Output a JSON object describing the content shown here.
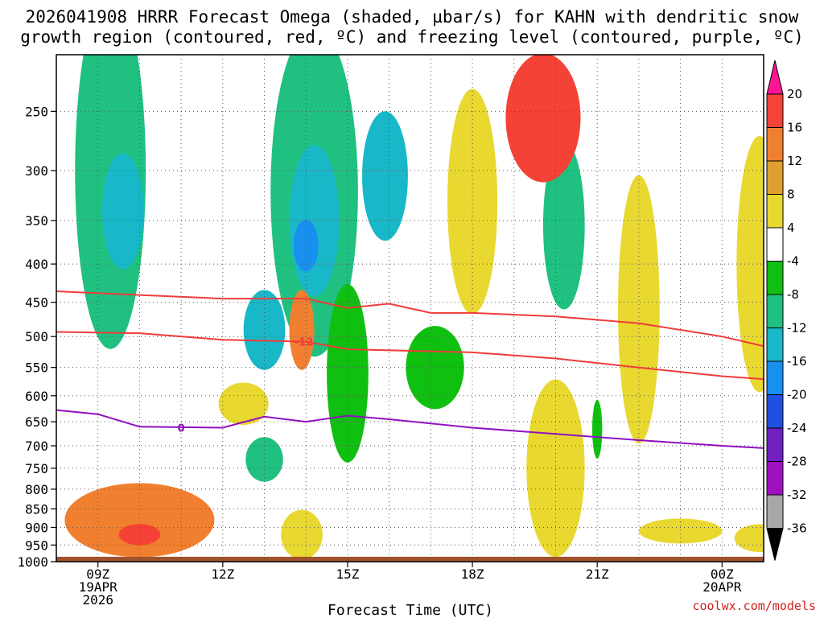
{
  "chart_data": {
    "type": "heatmap",
    "title_line1": "2026041908 HRRR Forecast Omega (shaded, µbar/s) for KAHN with dendritic snow",
    "title_line2": "growth region (contoured, red, ºC) and freezing level (contoured, purple, ºC)",
    "xlabel": "Forecast Time (UTC)",
    "credit": "coolwx.com/models",
    "x_range": [
      8,
      25
    ],
    "y_range": [
      1000,
      210
    ],
    "y_ticks": [
      250,
      300,
      350,
      400,
      450,
      500,
      550,
      600,
      650,
      700,
      750,
      800,
      850,
      900,
      950,
      1000
    ],
    "x_ticks": [
      {
        "t": 9,
        "lines": [
          "09Z",
          "19APR",
          "2026"
        ]
      },
      {
        "t": 12,
        "lines": [
          "12Z"
        ]
      },
      {
        "t": 15,
        "lines": [
          "15Z"
        ]
      },
      {
        "t": 18,
        "lines": [
          "18Z"
        ]
      },
      {
        "t": 21,
        "lines": [
          "21Z"
        ]
      },
      {
        "t": 24,
        "lines": [
          "00Z",
          "20APR"
        ]
      }
    ],
    "colorbar": {
      "labels": [
        "20",
        "16",
        "12",
        "8",
        "4",
        "-4",
        "-8",
        "-12",
        "-16",
        "-20",
        "-24",
        "-28",
        "-32",
        "-36"
      ],
      "colors": [
        "#ff1493",
        "#f44336",
        "#f08030",
        "#e0a030",
        "#e8d830",
        "#ffffff",
        "#10c010",
        "#20c080",
        "#18b8c8",
        "#1890f0",
        "#2050e0",
        "#7020c0",
        "#a010c0",
        "#a8a8a8"
      ]
    },
    "ground": {
      "pressure": 985,
      "color": "#a0522d"
    },
    "omega_cells": [
      {
        "t": 9.3,
        "p": 300,
        "rt": 0.85,
        "rp": 150,
        "v": -10
      },
      {
        "t": 9.6,
        "p": 340,
        "rt": 0.5,
        "rp": 60,
        "v": -12
      },
      {
        "t": 14.2,
        "p": 320,
        "rt": 1.05,
        "rp": 150,
        "v": -8
      },
      {
        "t": 14.2,
        "p": 350,
        "rt": 0.6,
        "rp": 80,
        "v": -14
      },
      {
        "t": 14.0,
        "p": 378,
        "rt": 0.3,
        "rp": 30,
        "v": -18
      },
      {
        "t": 15.9,
        "p": 305,
        "rt": 0.55,
        "rp": 60,
        "v": -14
      },
      {
        "t": 13.0,
        "p": 490,
        "rt": 0.5,
        "rp": 60,
        "v": -12
      },
      {
        "t": 15.0,
        "p": 560,
        "rt": 0.5,
        "rp": 150,
        "v": -7
      },
      {
        "t": 13.0,
        "p": 730,
        "rt": 0.45,
        "rp": 50,
        "v": -10
      },
      {
        "t": 20.2,
        "p": 355,
        "rt": 0.5,
        "rp": 90,
        "v": -9
      },
      {
        "t": 17.1,
        "p": 550,
        "rt": 0.7,
        "rp": 70,
        "v": -6
      },
      {
        "t": 21.0,
        "p": 665,
        "rt": 0.12,
        "rp": 60,
        "v": -6
      },
      {
        "t": 19.7,
        "p": 255,
        "rt": 0.9,
        "rp": 50,
        "v": 14
      },
      {
        "t": 18.0,
        "p": 330,
        "rt": 0.6,
        "rp": 110,
        "v": 7
      },
      {
        "t": 24.9,
        "p": 400,
        "rt": 0.55,
        "rp": 150,
        "v": 5
      },
      {
        "t": 22.0,
        "p": 460,
        "rt": 0.5,
        "rp": 180,
        "v": 5
      },
      {
        "t": 13.9,
        "p": 490,
        "rt": 0.3,
        "rp": 60,
        "v": 9
      },
      {
        "t": 12.5,
        "p": 615,
        "rt": 0.6,
        "rp": 40,
        "v": 7
      },
      {
        "t": 20.0,
        "p": 750,
        "rt": 0.7,
        "rp": 200,
        "v": 8
      },
      {
        "t": 10.0,
        "p": 880,
        "rt": 1.8,
        "rp": 100,
        "v": 10
      },
      {
        "t": 10.0,
        "p": 920,
        "rt": 0.5,
        "rp": 30,
        "v": 14
      },
      {
        "t": 13.9,
        "p": 920,
        "rt": 0.5,
        "rp": 70,
        "v": 5
      },
      {
        "t": 23.0,
        "p": 910,
        "rt": 1.0,
        "rp": 35,
        "v": 5
      },
      {
        "t": 24.9,
        "p": 930,
        "rt": 0.6,
        "rp": 40,
        "v": 5
      }
    ],
    "dgz_top": {
      "label": "",
      "points": [
        [
          8,
          435
        ],
        [
          10,
          440
        ],
        [
          12,
          445
        ],
        [
          14,
          445
        ],
        [
          15,
          458
        ],
        [
          16,
          452
        ],
        [
          17,
          465
        ],
        [
          18,
          465
        ],
        [
          20,
          470
        ],
        [
          22,
          480
        ],
        [
          24,
          500
        ],
        [
          25,
          515
        ]
      ]
    },
    "dgz_bottom": {
      "label": "-12",
      "points": [
        [
          8,
          493
        ],
        [
          10,
          495
        ],
        [
          12,
          505
        ],
        [
          14,
          508
        ],
        [
          15,
          520
        ],
        [
          18,
          525
        ],
        [
          20,
          535
        ],
        [
          22,
          550
        ],
        [
          24,
          565
        ],
        [
          25,
          570
        ]
      ]
    },
    "freezing_level": {
      "label": "0",
      "points": [
        [
          8,
          627
        ],
        [
          9,
          635
        ],
        [
          10,
          660
        ],
        [
          12,
          662
        ],
        [
          13,
          640
        ],
        [
          14,
          650
        ],
        [
          15,
          638
        ],
        [
          16,
          645
        ],
        [
          18,
          662
        ],
        [
          20,
          675
        ],
        [
          22,
          688
        ],
        [
          24,
          700
        ],
        [
          25,
          705
        ]
      ]
    }
  }
}
